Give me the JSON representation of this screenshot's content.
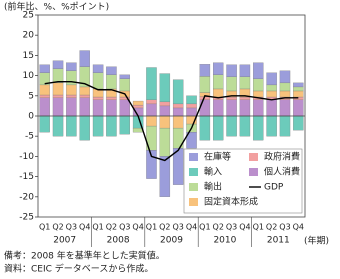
{
  "chart_data": {
    "type": "bar",
    "y_label": "(前年比、%、%ポイント)",
    "x_label": "(年期)",
    "categories": [
      "Q1",
      "Q2",
      "Q3",
      "Q4",
      "Q1",
      "Q2",
      "Q3",
      "Q4",
      "Q1",
      "Q2",
      "Q3",
      "Q4",
      "Q1",
      "Q2",
      "Q3",
      "Q4",
      "Q1",
      "Q2",
      "Q3",
      "Q4"
    ],
    "groups": [
      "2007",
      "2008",
      "2009",
      "2010",
      "2011"
    ],
    "ylim": [
      -25,
      25
    ],
    "yticks": [
      -25,
      -20,
      -15,
      -10,
      -5,
      0,
      5,
      10,
      15,
      20,
      25
    ],
    "series": [
      {
        "name": "在庫等",
        "color": "#9b9ddb",
        "values": [
          2,
          2,
          2,
          4,
          2,
          2,
          1,
          0,
          -7,
          -10,
          -9,
          -4,
          3,
          3,
          3,
          3,
          4,
          3,
          3,
          1
        ]
      },
      {
        "name": "輸入",
        "color": "#6ccbbb",
        "values": [
          -4,
          -5,
          -5,
          -6,
          -5,
          -5,
          -4.5,
          -3,
          8,
          7,
          6,
          2,
          -6,
          -6,
          -5,
          -5,
          -6,
          -5,
          -5,
          -3.5
        ]
      },
      {
        "name": "輸出",
        "color": "#bcdc98",
        "values": [
          3,
          3.5,
          3.5,
          5,
          4,
          3.5,
          3,
          -1,
          -6,
          -7,
          -5,
          -2,
          4,
          3.5,
          3.5,
          3,
          3,
          1.5,
          2,
          1
        ]
      },
      {
        "name": "固定資本形成",
        "color": "#f8c27c",
        "values": [
          2.5,
          3,
          2.5,
          2,
          2,
          2,
          1.5,
          1,
          -2.5,
          -3,
          -3,
          -2,
          1,
          2,
          1.5,
          2,
          1.5,
          1.5,
          1.5,
          1.5
        ]
      },
      {
        "name": "政府消費",
        "color": "#f2a0a0",
        "values": [
          0.7,
          0.7,
          0.7,
          0.7,
          0.7,
          0.7,
          0.7,
          0.7,
          1,
          1,
          1,
          1,
          0.8,
          0.7,
          0.7,
          0.7,
          0.7,
          0.7,
          0.7,
          0.7
        ]
      },
      {
        "name": "個人消費",
        "color": "#bb8fcc",
        "values": [
          4.5,
          4.5,
          4.5,
          4.5,
          4,
          4,
          4,
          2,
          3,
          2.5,
          2,
          2,
          4,
          4,
          4,
          4,
          4,
          4,
          4,
          4
        ]
      },
      {
        "name": "GDP",
        "color": "#000000",
        "type": "line",
        "values": [
          8,
          8.5,
          8.5,
          8,
          6.5,
          6.5,
          5.5,
          0,
          -10,
          -11,
          -8.5,
          -3,
          5,
          4.5,
          5,
          5,
          4.5,
          4,
          4.5,
          4.5
        ]
      }
    ]
  },
  "notes": [
    "備考：2008 年を基準年とした実質値。",
    "資料：CEIC データベースから作成。"
  ]
}
